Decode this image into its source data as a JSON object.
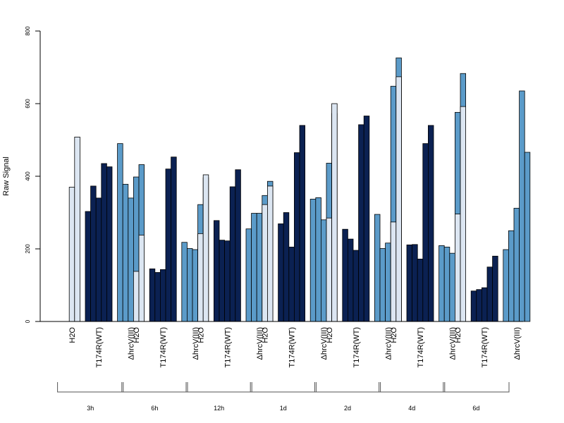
{
  "chart_data": {
    "type": "bar",
    "ylabel": "Raw Signal",
    "ylim": [
      0,
      800
    ],
    "yticks": [
      0,
      200,
      400,
      600,
      800
    ],
    "condition_labels": [
      "H2O",
      "T174R(WT)",
      "ΔhrcV(III)"
    ],
    "groups": [
      {
        "label": "3h",
        "bars": [
          {
            "condition": "H2O",
            "values": [
              0,
              370,
              508
            ]
          },
          {
            "condition": "T174R(WT)",
            "values": [
              303,
              373,
              340,
              435,
              426
            ]
          },
          {
            "condition": "ΔhrcV(III)",
            "values": [
              490,
              378,
              340,
              398,
              432
            ]
          }
        ]
      },
      {
        "label": "6h",
        "bars": [
          {
            "condition": "H2O",
            "values": [
              0,
              138,
              238
            ]
          },
          {
            "condition": "T174R(WT)",
            "values": [
              145,
              135,
              143,
              420,
              453
            ]
          },
          {
            "condition": "ΔhrcV(III)",
            "values": [
              218,
              201,
              198,
              322,
              396
            ]
          }
        ]
      },
      {
        "label": "12h",
        "bars": [
          {
            "condition": "H2O",
            "values": [
              0,
              242,
              404
            ]
          },
          {
            "condition": "T174R(WT)",
            "values": [
              278,
              224,
              222,
              371,
              418
            ]
          },
          {
            "condition": "ΔhrcV(III)",
            "values": [
              255,
              298,
              298,
              347,
              386
            ]
          }
        ]
      },
      {
        "label": "1d",
        "bars": [
          {
            "condition": "H2O",
            "values": [
              0,
              322,
              373
            ]
          },
          {
            "condition": "T174R(WT)",
            "values": [
              269,
              300,
              205,
              465,
              540
            ]
          },
          {
            "condition": "ΔhrcV(III)",
            "values": [
              337,
              341,
              280,
              436,
              573
            ]
          }
        ]
      },
      {
        "label": "2d",
        "bars": [
          {
            "condition": "H2O",
            "values": [
              0,
              285,
              600
            ]
          },
          {
            "condition": "T174R(WT)",
            "values": [
              254,
              227,
              196,
              542,
              566
            ]
          },
          {
            "condition": "ΔhrcV(III)",
            "values": [
              295,
              201,
              216,
              648,
              726
            ]
          }
        ]
      },
      {
        "label": "4d",
        "bars": [
          {
            "condition": "H2O",
            "values": [
              0,
              274,
              674
            ]
          },
          {
            "condition": "T174R(WT)",
            "values": [
              211,
              212,
              172,
              490,
              540
            ]
          },
          {
            "condition": "ΔhrcV(III)",
            "values": [
              209,
              205,
              188,
              576,
              683
            ]
          }
        ]
      },
      {
        "label": "6d",
        "bars": [
          {
            "condition": "H2O",
            "values": [
              0,
              296,
              592
            ]
          },
          {
            "condition": "T174R(WT)",
            "values": [
              84,
              88,
              93,
              150,
              180
            ]
          },
          {
            "condition": "ΔhrcV(III)",
            "values": [
              198,
              250,
              312,
              635,
              466
            ]
          }
        ]
      }
    ],
    "colors": {
      "H2O": "#dce6f2",
      "T174R(WT)": "#0b2152",
      "ΔhrcV(III)": "#5b9bc9",
      "axis": "#000000",
      "bar_border": "#000000"
    },
    "legend": "none",
    "grid": false
  }
}
